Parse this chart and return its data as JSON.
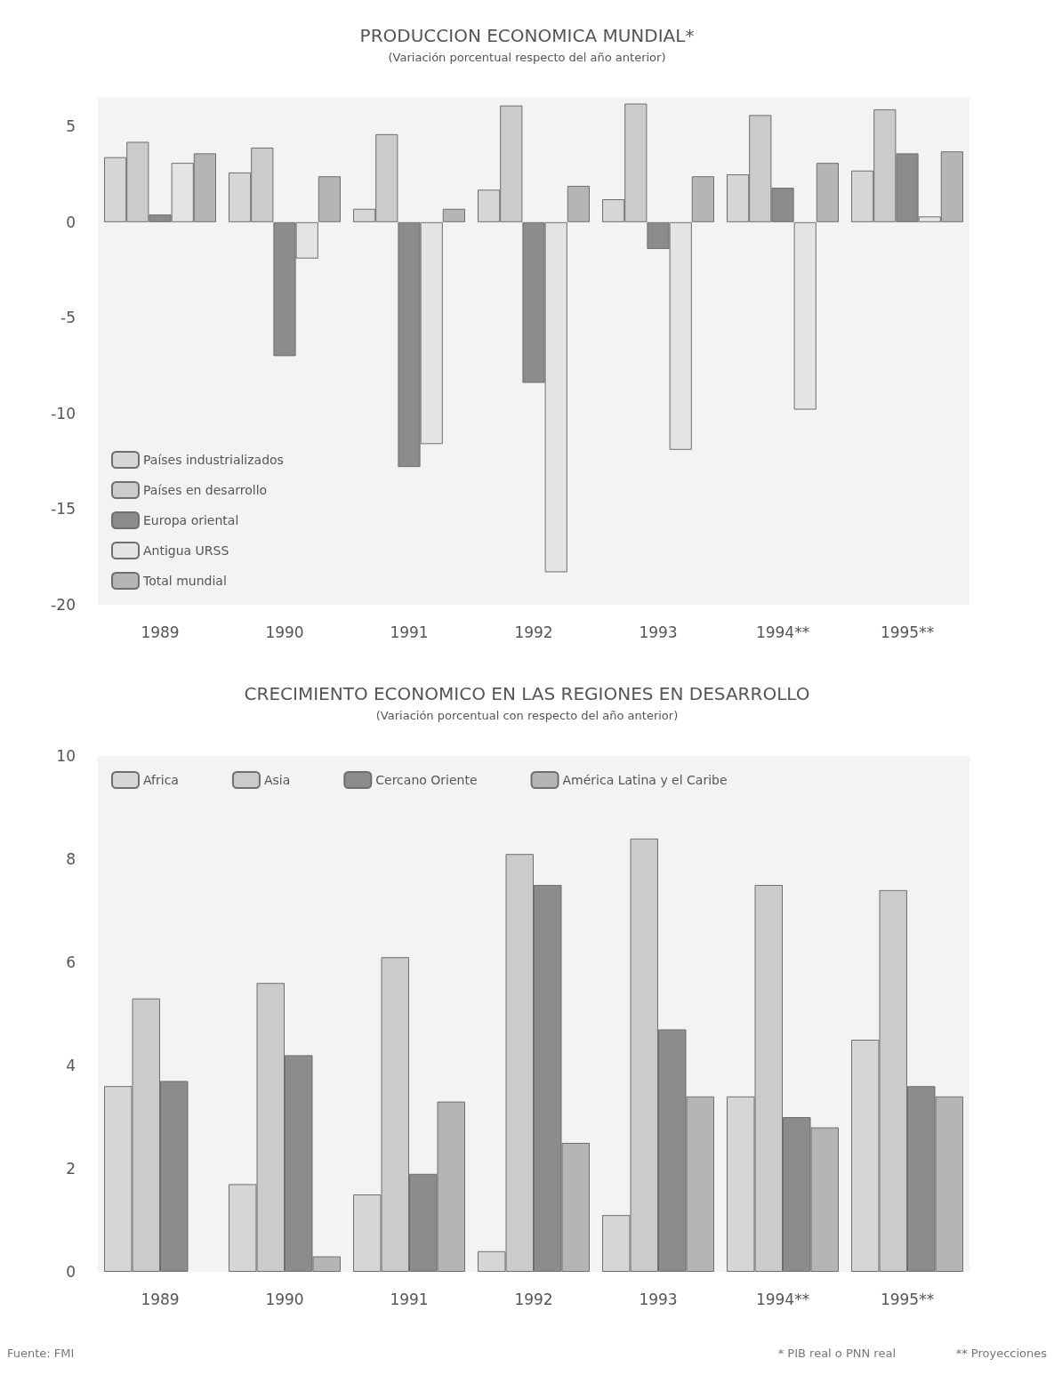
{
  "chart_data": [
    {
      "type": "bar",
      "title": "PRODUCCION ECONOMICA MUNDIAL*",
      "subtitle": "(Variación porcentual respecto del año anterior)",
      "categories": [
        "1989",
        "1990",
        "1991",
        "1992",
        "1993",
        "1994**",
        "1995**"
      ],
      "series": [
        {
          "name": "Países industrializados",
          "color": "#d6d6d6",
          "values": [
            3.4,
            2.6,
            0.7,
            1.7,
            1.2,
            2.5,
            2.7
          ]
        },
        {
          "name": "Países en desarrollo",
          "color": "#cbcbcb",
          "values": [
            4.2,
            3.9,
            4.6,
            6.1,
            6.2,
            5.6,
            5.9
          ]
        },
        {
          "name": "Europa oriental",
          "color": "#8c8c8c",
          "values": [
            0.4,
            -7.0,
            -12.8,
            -8.4,
            -1.4,
            1.8,
            3.6
          ]
        },
        {
          "name": "Antigua URSS",
          "color": "#e4e4e4",
          "values": [
            3.1,
            -1.9,
            -11.6,
            -18.3,
            -11.9,
            -9.8,
            0.3
          ]
        },
        {
          "name": "Total mundial",
          "color": "#b5b5b5",
          "values": [
            3.6,
            2.4,
            0.7,
            1.9,
            2.4,
            3.1,
            3.7
          ]
        }
      ],
      "ylim": [
        -20,
        6.5
      ],
      "yticks": [
        -20,
        -15,
        -10,
        -5,
        0,
        5
      ],
      "grid": false,
      "legend": "bottom left"
    },
    {
      "type": "bar",
      "title": "CRECIMIENTO ECONOMICO EN LAS REGIONES EN DESARROLLO",
      "subtitle": "(Variación porcentual con respecto del año anterior)",
      "categories": [
        "1989",
        "1990",
        "1991",
        "1992",
        "1993",
        "1994**",
        "1995**"
      ],
      "series": [
        {
          "name": "Africa",
          "color": "#d6d6d6",
          "values": [
            3.6,
            1.7,
            1.5,
            0.4,
            1.1,
            3.4,
            4.5
          ]
        },
        {
          "name": "Asia",
          "color": "#cbcbcb",
          "values": [
            5.3,
            5.6,
            6.1,
            8.1,
            8.4,
            7.5,
            7.4
          ]
        },
        {
          "name": "Cercano Oriente",
          "color": "#8c8c8c",
          "values": [
            3.7,
            4.2,
            1.9,
            7.5,
            4.7,
            3.0,
            3.6
          ]
        },
        {
          "name": "América Latina y el Caribe",
          "color": "#b5b5b5",
          "values": [
            null,
            0.3,
            3.3,
            2.5,
            3.4,
            2.8,
            3.4
          ]
        }
      ],
      "ylim": [
        0,
        10
      ],
      "yticks": [
        0,
        2,
        4,
        6,
        8,
        10
      ],
      "grid": false,
      "legend": "top",
      "annotations": [
        "Fuente: FMI",
        "* PIB real o PNN real",
        "** Proyecciones"
      ]
    }
  ]
}
